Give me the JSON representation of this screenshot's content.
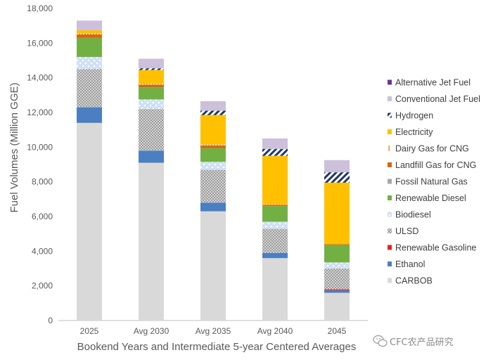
{
  "chart_data": {
    "type": "bar",
    "stacked": true,
    "title": "",
    "xlabel": "Bookend Years and Intermediate 5-year Centered Averages",
    "ylabel": "Fuel Volumes (Million GGE)",
    "ylim": [
      0,
      18000
    ],
    "yticks": [
      0,
      2000,
      4000,
      6000,
      8000,
      10000,
      12000,
      14000,
      16000,
      18000
    ],
    "ytick_labels": [
      "0",
      "2,000",
      "4,000",
      "6,000",
      "8,000",
      "10,000",
      "12,000",
      "14,000",
      "16,000",
      "18,000"
    ],
    "grid": false,
    "legend_position": "right",
    "categories": [
      "2025",
      "Avg 2030",
      "Avg 2035",
      "Avg 2040",
      "2045"
    ],
    "series": [
      {
        "name": "CARBOB",
        "color": "#d9d9d9",
        "pattern": "solid",
        "values": [
          11400,
          9100,
          6300,
          3600,
          1600
        ]
      },
      {
        "name": "Ethanol",
        "color": "#4a7fc1",
        "pattern": "solid",
        "values": [
          900,
          700,
          500,
          300,
          150
        ]
      },
      {
        "name": "Renewable Gasoline",
        "color": "#e8231e",
        "pattern": "solid",
        "values": [
          0,
          0,
          0,
          0,
          50
        ]
      },
      {
        "name": "ULSD",
        "color": "#8c8c8c",
        "pattern": "dots",
        "values": [
          2200,
          2400,
          1900,
          1400,
          1200
        ]
      },
      {
        "name": "Biodiesel",
        "color": "#c5d9f1",
        "pattern": "dots-light",
        "values": [
          700,
          550,
          450,
          400,
          350
        ]
      },
      {
        "name": "Renewable Diesel",
        "color": "#72b043",
        "pattern": "solid",
        "values": [
          1100,
          700,
          800,
          900,
          1000
        ]
      },
      {
        "name": "Fossil Natural Gas",
        "color": "#a6a6a6",
        "pattern": "solid",
        "values": [
          0,
          0,
          0,
          0,
          0
        ]
      },
      {
        "name": "Landfill Gas for CNG",
        "color": "#d26a14",
        "pattern": "solid",
        "values": [
          200,
          150,
          150,
          70,
          50
        ]
      },
      {
        "name": "Dairy Gas for CNG",
        "color": "#f4b183",
        "pattern": "stripes",
        "values": [
          50,
          50,
          50,
          30,
          0
        ]
      },
      {
        "name": "Electricity",
        "color": "#ffc000",
        "pattern": "solid",
        "values": [
          200,
          800,
          1700,
          2800,
          3550
        ]
      },
      {
        "name": "Hydrogen",
        "color": "#1f3864",
        "pattern": "diag",
        "values": [
          0,
          100,
          250,
          400,
          600
        ]
      },
      {
        "name": "Conventional Jet Fuel",
        "color": "#ccc0da",
        "pattern": "solid",
        "values": [
          550,
          550,
          550,
          600,
          700
        ]
      },
      {
        "name": "Alternative Jet Fuel",
        "color": "#7030a0",
        "pattern": "solid",
        "values": [
          0,
          0,
          0,
          0,
          0
        ]
      }
    ],
    "legend_order": [
      "Alternative Jet Fuel",
      "Conventional Jet Fuel",
      "Hydrogen",
      "Electricity",
      "Dairy Gas for CNG",
      "Landfill Gas for CNG",
      "Fossil Natural Gas",
      "Renewable Diesel",
      "Biodiesel",
      "ULSD",
      "Renewable Gasoline",
      "Ethanol",
      "CARBOB"
    ]
  },
  "watermark": {
    "text": "CFC农产品研究",
    "icon": "wechat-icon"
  }
}
